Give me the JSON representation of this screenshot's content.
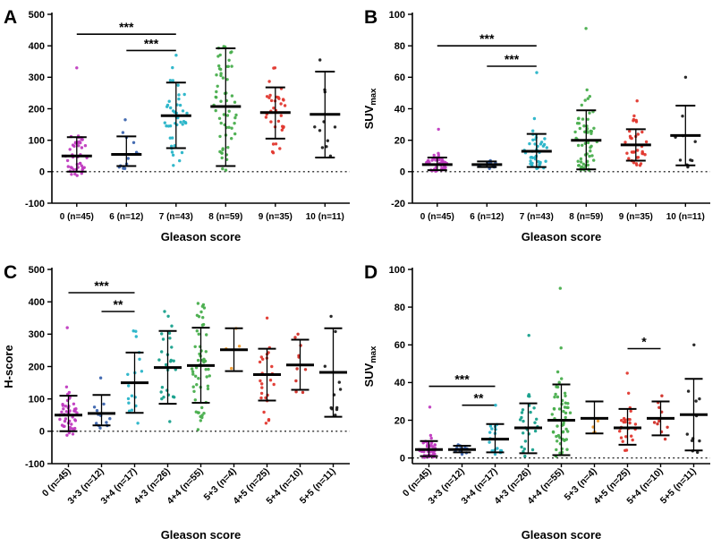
{
  "background": "#ffffff",
  "chart_data": [
    {
      "type": "scatter",
      "letter": "A",
      "title": "",
      "xlabel": "Gleason score",
      "ylabel": null,
      "ylim": [
        -100,
        500
      ],
      "yticks": [
        -100,
        0,
        100,
        200,
        300,
        400,
        500
      ],
      "zero_line": 0,
      "rotate_xticks": false,
      "point_style": "jittered dots with mean and SD error bars",
      "categories": [
        "0 (n=45)",
        "6 (n=12)",
        "7 (n=43)",
        "8 (n=59)",
        "9 (n=35)",
        "10 (n=11)"
      ],
      "groups": [
        {
          "label": "0 (n=45)",
          "n": 45,
          "color": "#C03BC0",
          "mean": 50,
          "sd_low": 0,
          "sd_high": 110,
          "pt_min": -12,
          "pt_max": 330
        },
        {
          "label": "6 (n=12)",
          "n": 12,
          "color": "#3B64AE",
          "mean": 55,
          "sd_low": 18,
          "sd_high": 112,
          "pt_min": 10,
          "pt_max": 165
        },
        {
          "label": "7 (n=43)",
          "n": 43,
          "color": "#28B4C8",
          "mean": 178,
          "sd_low": 75,
          "sd_high": 283,
          "pt_min": 20,
          "pt_max": 370
        },
        {
          "label": "8 (n=59)",
          "n": 59,
          "color": "#49AE4D",
          "mean": 207,
          "sd_low": 18,
          "sd_high": 392,
          "pt_min": 5,
          "pt_max": 398
        },
        {
          "label": "9 (n=35)",
          "n": 35,
          "color": "#E2382F",
          "mean": 188,
          "sd_low": 105,
          "sd_high": 268,
          "pt_min": 60,
          "pt_max": 330
        },
        {
          "label": "10 (n=11)",
          "n": 11,
          "color": "#1F1F1F",
          "mean": 182,
          "sd_low": 45,
          "sd_high": 318,
          "pt_min": 50,
          "pt_max": 355
        }
      ],
      "significance": [
        {
          "from": 0,
          "to": 2,
          "label": "***",
          "y": 437
        },
        {
          "from": 1,
          "to": 2,
          "label": "***",
          "y": 385
        }
      ]
    },
    {
      "type": "scatter",
      "letter": "B",
      "title": "",
      "xlabel": "Gleason score",
      "ylabel": {
        "main": "SUV",
        "sub": "max"
      },
      "ylim": [
        -20,
        100
      ],
      "yticks": [
        -20,
        0,
        20,
        40,
        60,
        80,
        100
      ],
      "zero_line": 0,
      "rotate_xticks": false,
      "point_style": "jittered dots with mean and SD error bars",
      "categories": [
        "0 (n=45)",
        "6 (n=12)",
        "7 (n=43)",
        "8 (n=59)",
        "9 (n=35)",
        "10 (n=11)"
      ],
      "groups": [
        {
          "label": "0 (n=45)",
          "n": 45,
          "color": "#C03BC0",
          "mean": 4.5,
          "sd_low": 1,
          "sd_high": 9,
          "pt_min": 0.3,
          "pt_max": 27
        },
        {
          "label": "6 (n=12)",
          "n": 12,
          "color": "#3B64AE",
          "mean": 4.5,
          "sd_low": 3,
          "sd_high": 6.5,
          "pt_min": 2,
          "pt_max": 7
        },
        {
          "label": "7 (n=43)",
          "n": 43,
          "color": "#28B4C8",
          "mean": 13,
          "sd_low": 3,
          "sd_high": 24,
          "pt_min": 2,
          "pt_max": 63
        },
        {
          "label": "8 (n=59)",
          "n": 59,
          "color": "#49AE4D",
          "mean": 20,
          "sd_low": 1.5,
          "sd_high": 39,
          "pt_min": 1,
          "pt_max": 91
        },
        {
          "label": "9 (n=35)",
          "n": 35,
          "color": "#E2382F",
          "mean": 17,
          "sd_low": 7,
          "sd_high": 27,
          "pt_min": 4,
          "pt_max": 45
        },
        {
          "label": "10 (n=11)",
          "n": 11,
          "color": "#1F1F1F",
          "mean": 23,
          "sd_low": 4,
          "sd_high": 42,
          "pt_min": 3,
          "pt_max": 60
        }
      ],
      "significance": [
        {
          "from": 0,
          "to": 2,
          "label": "***",
          "y": 80
        },
        {
          "from": 1,
          "to": 2,
          "label": "***",
          "y": 67
        }
      ]
    },
    {
      "type": "scatter",
      "letter": "C",
      "title": "",
      "xlabel": "Gleason score",
      "ylabel": "H-score",
      "ylim": [
        -100,
        500
      ],
      "yticks": [
        -100,
        0,
        100,
        200,
        300,
        400,
        500
      ],
      "zero_line": 0,
      "rotate_xticks": true,
      "point_style": "jittered dots with mean and SD error bars",
      "categories": [
        "0 (n=45)",
        "3+3 (n=12)",
        "3+4 (n=17)",
        "4+3 (n=26)",
        "4+4 (n=55)",
        "5+3 (n=4)",
        "4+5 (n=25)",
        "5+4 (n=10)",
        "5+5 (n=11)"
      ],
      "groups": [
        {
          "label": "0 (n=45)",
          "n": 45,
          "color": "#C03BC0",
          "mean": 50,
          "sd_low": 0,
          "sd_high": 110,
          "pt_min": -12,
          "pt_max": 320
        },
        {
          "label": "3+3 (n=12)",
          "n": 12,
          "color": "#3B64AE",
          "mean": 55,
          "sd_low": 18,
          "sd_high": 112,
          "pt_min": 10,
          "pt_max": 165
        },
        {
          "label": "3+4 (n=17)",
          "n": 17,
          "color": "#28B4C8",
          "mean": 150,
          "sd_low": 57,
          "sd_high": 243,
          "pt_min": 25,
          "pt_max": 310
        },
        {
          "label": "4+3 (n=26)",
          "n": 26,
          "color": "#17A08C",
          "mean": 197,
          "sd_low": 85,
          "sd_high": 310,
          "pt_min": 30,
          "pt_max": 370
        },
        {
          "label": "4+4 (n=55)",
          "n": 55,
          "color": "#49AE4D",
          "mean": 203,
          "sd_low": 88,
          "sd_high": 320,
          "pt_min": 5,
          "pt_max": 395
        },
        {
          "label": "5+3 (n=4)",
          "n": 4,
          "color": "#F29B2D",
          "mean": 252,
          "sd_low": 186,
          "sd_high": 318,
          "pt_min": 188,
          "pt_max": 320
        },
        {
          "label": "4+5 (n=25)",
          "n": 25,
          "color": "#E2382F",
          "mean": 175,
          "sd_low": 95,
          "sd_high": 255,
          "pt_min": 25,
          "pt_max": 350
        },
        {
          "label": "5+4 (n=10)",
          "n": 10,
          "color": "#D02E27",
          "mean": 205,
          "sd_low": 128,
          "sd_high": 283,
          "pt_min": 120,
          "pt_max": 300
        },
        {
          "label": "5+5 (n=11)",
          "n": 11,
          "color": "#1F1F1F",
          "mean": 182,
          "sd_low": 45,
          "sd_high": 318,
          "pt_min": 50,
          "pt_max": 355
        }
      ],
      "significance": [
        {
          "from": 0,
          "to": 2,
          "label": "***",
          "y": 428
        },
        {
          "from": 1,
          "to": 2,
          "label": "**",
          "y": 370
        }
      ]
    },
    {
      "type": "scatter",
      "letter": "D",
      "title": "",
      "xlabel": "Gleason score",
      "ylabel": {
        "main": "SUV",
        "sub": "max"
      },
      "ylim": [
        -3,
        100
      ],
      "yticks": [
        0,
        20,
        40,
        60,
        80,
        100
      ],
      "zero_line": 0,
      "rotate_xticks": true,
      "point_style": "jittered dots with mean and SD error bars",
      "categories": [
        "0 (n=45)",
        "3+3 (n=12)",
        "3+4 (n=17)",
        "4+3 (n=26)",
        "4+4 (n=55)",
        "5+3 (n=4)",
        "4+5 (n=25)",
        "5+4 (n=10)",
        "5+5 (n=11)"
      ],
      "groups": [
        {
          "label": "0 (n=45)",
          "n": 45,
          "color": "#C03BC0",
          "mean": 4.5,
          "sd_low": 1,
          "sd_high": 9,
          "pt_min": 0.3,
          "pt_max": 27
        },
        {
          "label": "3+3 (n=12)",
          "n": 12,
          "color": "#3B64AE",
          "mean": 4.5,
          "sd_low": 3,
          "sd_high": 6.5,
          "pt_min": 2,
          "pt_max": 7
        },
        {
          "label": "3+4 (n=17)",
          "n": 17,
          "color": "#28B4C8",
          "mean": 10,
          "sd_low": 3,
          "sd_high": 18,
          "pt_min": 2,
          "pt_max": 28
        },
        {
          "label": "4+3 (n=26)",
          "n": 26,
          "color": "#17A08C",
          "mean": 16,
          "sd_low": 2.5,
          "sd_high": 29,
          "pt_min": 1,
          "pt_max": 65
        },
        {
          "label": "4+4 (n=55)",
          "n": 55,
          "color": "#49AE4D",
          "mean": 20,
          "sd_low": 1.5,
          "sd_high": 39,
          "pt_min": 1,
          "pt_max": 90
        },
        {
          "label": "5+3 (n=4)",
          "n": 4,
          "color": "#F29B2D",
          "mean": 21,
          "sd_low": 13,
          "sd_high": 30,
          "pt_min": 13,
          "pt_max": 30
        },
        {
          "label": "4+5 (n=25)",
          "n": 25,
          "color": "#E2382F",
          "mean": 16,
          "sd_low": 7,
          "sd_high": 26,
          "pt_min": 4,
          "pt_max": 45
        },
        {
          "label": "5+4 (n=10)",
          "n": 10,
          "color": "#D02E27",
          "mean": 21,
          "sd_low": 12,
          "sd_high": 30,
          "pt_min": 10,
          "pt_max": 33
        },
        {
          "label": "5+5 (n=11)",
          "n": 11,
          "color": "#1F1F1F",
          "mean": 23,
          "sd_low": 4,
          "sd_high": 42,
          "pt_min": 3,
          "pt_max": 60
        }
      ],
      "significance": [
        {
          "from": 0,
          "to": 2,
          "label": "***",
          "y": 38
        },
        {
          "from": 1,
          "to": 2,
          "label": "**",
          "y": 28
        },
        {
          "from": 6,
          "to": 7,
          "label": "*",
          "y": 58
        }
      ]
    }
  ]
}
